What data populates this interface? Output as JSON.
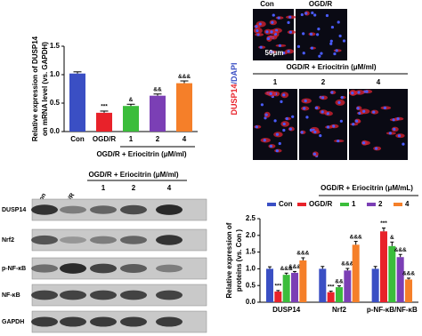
{
  "chart_data": [
    {
      "type": "bar",
      "ylabel": [
        "Relative expression of DUSP14",
        "on mRNA level (vs. GAPDH)"
      ],
      "categories": [
        "Con",
        "OGD/R",
        "1",
        "2",
        "4"
      ],
      "values": [
        1.02,
        0.33,
        0.45,
        0.63,
        0.85
      ],
      "errors": [
        0.03,
        0.03,
        0.03,
        0.03,
        0.04
      ],
      "annotations": [
        null,
        "***",
        "&",
        "&&",
        "&&&"
      ],
      "colors": [
        "#3a4fc4",
        "#e8222a",
        "#3bbd3b",
        "#7b3fb5",
        "#f57f29"
      ],
      "group_label": "OGD/R + Eriocitrin (μM/ml)",
      "ylim": [
        0,
        1.5
      ],
      "yticks": [
        {
          "value": 0,
          "label": "0.0"
        },
        {
          "value": 0.5,
          "label": "0.5"
        },
        {
          "value": 1,
          "label": "1.0"
        },
        {
          "value": 1.5,
          "label": "1.5"
        }
      ]
    },
    {
      "type": "grouped_bar",
      "title": "OGD/R + Eriocitrin (μM/mL)",
      "ylabel": [
        "Relative expression of",
        "proteins (vs. Con )"
      ],
      "categories": [
        "DUSP14",
        "Nrf2",
        "p-NF-κB/NF-κB"
      ],
      "series": [
        {
          "name": "Con",
          "color": "#3a4fc4",
          "values": [
            1.0,
            1.0,
            1.0
          ],
          "errors": [
            0.06,
            0.07,
            0.07
          ],
          "annotations": [
            null,
            null,
            null
          ]
        },
        {
          "name": "OGD/R",
          "color": "#e8222a",
          "values": [
            0.32,
            0.3,
            2.12
          ],
          "errors": [
            0.03,
            0.03,
            0.1
          ],
          "annotations": [
            "***",
            "***",
            "***"
          ]
        },
        {
          "name": "1",
          "color": "#3bbd3b",
          "values": [
            0.82,
            0.45,
            1.68
          ],
          "errors": [
            0.05,
            0.04,
            0.12
          ],
          "annotations": [
            "&&&",
            "&&",
            "&"
          ]
        },
        {
          "name": "2",
          "color": "#7b3fb5",
          "values": [
            0.88,
            0.95,
            1.35
          ],
          "errors": [
            0.04,
            0.06,
            0.08
          ],
          "annotations": [
            "&&&",
            "&&&",
            "&&&"
          ]
        },
        {
          "name": "4",
          "color": "#f57f29",
          "values": [
            1.25,
            1.72,
            0.68
          ],
          "errors": [
            0.08,
            0.1,
            0.04
          ],
          "annotations": [
            "&&&",
            "&&&",
            "&&&"
          ]
        }
      ],
      "ylim": [
        0,
        2.5
      ],
      "yticks": [
        {
          "value": 0,
          "label": "0.0"
        },
        {
          "value": 0.5,
          "label": "0.5"
        },
        {
          "value": 1,
          "label": "1.0"
        },
        {
          "value": 1.5,
          "label": "1.5"
        },
        {
          "value": 2,
          "label": "2.0"
        },
        {
          "value": 2.5,
          "label": "2.5"
        }
      ]
    }
  ],
  "microscopy": {
    "columns_top": [
      "Con",
      "OGD/R"
    ],
    "treatment_label": "OGD/R + Eriocitrin (μM/ml)",
    "columns_bottom": [
      "1",
      "2",
      "4"
    ],
    "stain_label": [
      "DUSP14",
      "/DAPI"
    ],
    "scale_bar": "50μm"
  },
  "blot": {
    "columns": [
      "Con",
      "OGD/R"
    ],
    "treatment_label": "OGD/R + Eriocitrin (μM/ml)",
    "doses": [
      "1",
      "2",
      "4"
    ],
    "rows": [
      "DUSP14",
      "Nrf2",
      "p-NF-κB",
      "NF-κB",
      "GAPDH"
    ]
  }
}
